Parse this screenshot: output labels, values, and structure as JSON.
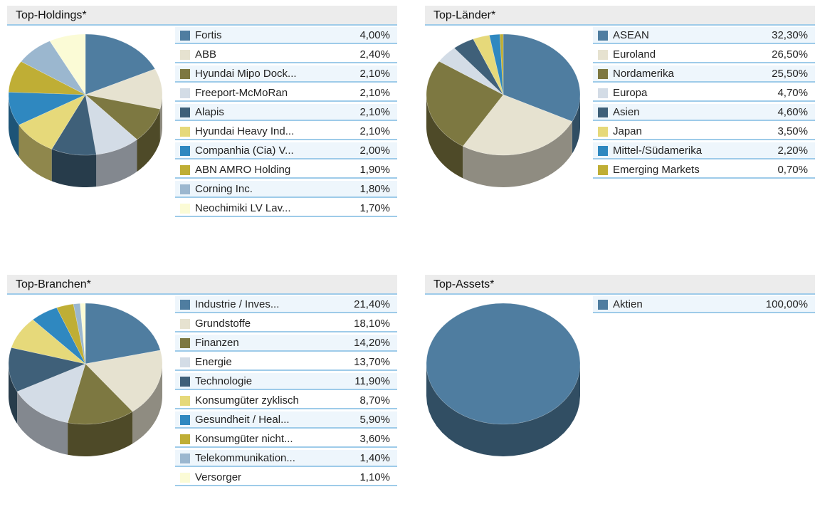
{
  "chart_data": [
    {
      "type": "pie",
      "title": "Top-Holdings*",
      "categories": [
        "Fortis",
        "ABB",
        "Hyundai Mipo Dock...",
        "Freeport-McMoRan",
        "Alapis",
        "Hyundai Heavy Ind...",
        "Companhia (Cia) V...",
        "ABN AMRO Holding",
        "Corning Inc.",
        "Neochimiki LV Lav..."
      ],
      "values": [
        4.0,
        2.4,
        2.1,
        2.1,
        2.1,
        2.1,
        2.0,
        1.9,
        1.8,
        1.7
      ],
      "value_labels": [
        "4,00%",
        "2,40%",
        "2,10%",
        "2,10%",
        "2,10%",
        "2,10%",
        "2,00%",
        "1,90%",
        "1,80%",
        "1,70%"
      ]
    },
    {
      "type": "pie",
      "title": "Top-Länder*",
      "categories": [
        "ASEAN",
        "Euroland",
        "Nordamerika",
        "Europa",
        "Asien",
        "Japan",
        "Mittel-/Südamerika",
        "Emerging Markets"
      ],
      "values": [
        32.3,
        26.5,
        25.5,
        4.7,
        4.6,
        3.5,
        2.2,
        0.7
      ],
      "value_labels": [
        "32,30%",
        "26,50%",
        "25,50%",
        "4,70%",
        "4,60%",
        "3,50%",
        "2,20%",
        "0,70%"
      ]
    },
    {
      "type": "pie",
      "title": "Top-Branchen*",
      "categories": [
        "Industrie / Inves...",
        "Grundstoffe",
        "Finanzen",
        "Energie",
        "Technologie",
        "Konsumgüter zyklisch",
        "Gesundheit / Heal...",
        "Konsumgüter nicht...",
        "Telekommunikation...",
        "Versorger"
      ],
      "values": [
        21.4,
        18.1,
        14.2,
        13.7,
        11.9,
        8.7,
        5.9,
        3.6,
        1.4,
        1.1
      ],
      "value_labels": [
        "21,40%",
        "18,10%",
        "14,20%",
        "13,70%",
        "11,90%",
        "8,70%",
        "5,90%",
        "3,60%",
        "1,40%",
        "1,10%"
      ]
    },
    {
      "type": "pie",
      "title": "Top-Assets*",
      "categories": [
        "Aktien"
      ],
      "values": [
        100.0
      ],
      "value_labels": [
        "100,00%"
      ]
    }
  ],
  "palette": [
    "#4f7da0",
    "#e6e2d0",
    "#7d7841",
    "#d3dce6",
    "#3f6079",
    "#e6d97a",
    "#2f88c0",
    "#bfae35",
    "#9bb7cf",
    "#fbfbd6"
  ]
}
